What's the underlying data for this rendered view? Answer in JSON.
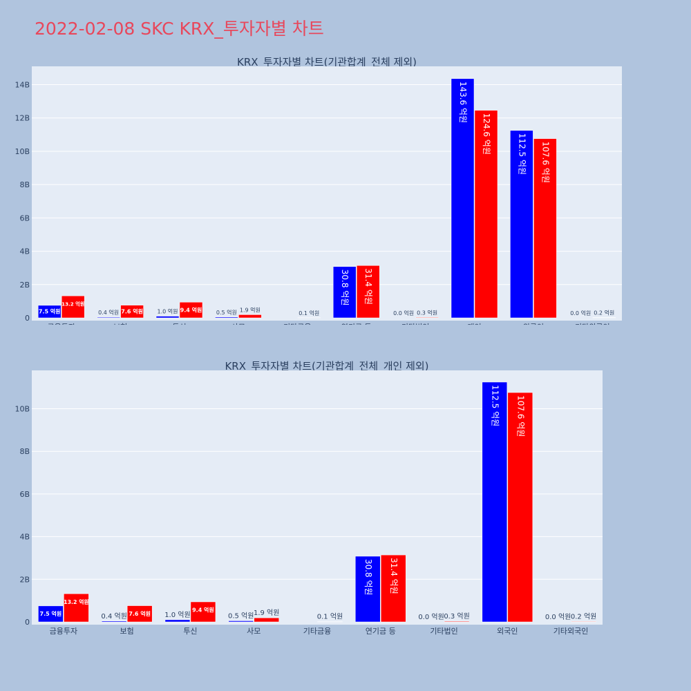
{
  "page": {
    "title": "2022-02-08 SKC KRX_투자자별 차트",
    "background": "#b0c4de",
    "title_color": "#e8475b"
  },
  "colors": {
    "series_a": "#0000ff",
    "series_b": "#ff0000",
    "plot_bg": "#e5ecf6",
    "grid": "#ffffff",
    "text": "#2a3f5f"
  },
  "chart_data": [
    {
      "type": "bar",
      "title": "KRX_투자자별 차트(기관합계_전체 제외)",
      "categories": [
        "금융투자",
        "보험",
        "투신",
        "사모",
        "기타금융",
        "연기금 등",
        "기타법인",
        "개인",
        "외국인",
        "기타외국인"
      ],
      "series": [
        {
          "color": "#0000ff",
          "values": [
            0.75,
            0.04,
            0.1,
            0.05,
            0.0,
            3.08,
            0.0,
            14.36,
            11.25,
            0.0
          ],
          "labels": [
            "7.5 억원",
            "0.4 억원",
            "1.0 억원",
            "0.5 억원",
            "",
            "30.8 억원",
            "0.0 억원",
            "143.6 억원",
            "112.5 억원",
            "0.0 억원"
          ]
        },
        {
          "color": "#ff0000",
          "values": [
            1.32,
            0.76,
            0.94,
            0.19,
            0.01,
            3.14,
            0.03,
            12.46,
            10.76,
            0.02
          ],
          "labels": [
            "13.2 억원",
            "7.6 억원",
            "9.4 억원",
            "1.9 억원",
            "0.1 억원",
            "31.4 억원",
            "0.3 억원",
            "124.6 억원",
            "107.6 억원",
            "0.2 억원"
          ]
        }
      ],
      "yticks": [
        "0",
        "2B",
        "4B",
        "6B",
        "8B",
        "10B",
        "12B",
        "14B"
      ],
      "ytick_values": [
        0,
        2,
        4,
        6,
        8,
        10,
        12,
        14
      ],
      "ylim": [
        0,
        15.1
      ],
      "grid": true
    },
    {
      "type": "bar",
      "title": "KRX_투자자별 차트(기관합계_전체_개인 제외)",
      "categories": [
        "금융투자",
        "보험",
        "투신",
        "사모",
        "기타금융",
        "연기금 등",
        "기타법인",
        "외국인",
        "기타외국인"
      ],
      "series": [
        {
          "color": "#0000ff",
          "values": [
            0.75,
            0.04,
            0.1,
            0.05,
            0.0,
            3.08,
            0.0,
            11.25,
            0.0
          ],
          "labels": [
            "7.5 억원",
            "0.4 억원",
            "1.0 억원",
            "0.5 억원",
            "",
            "30.8 억원",
            "0.0 억원",
            "112.5 억원",
            "0.0 억원"
          ]
        },
        {
          "color": "#ff0000",
          "values": [
            1.32,
            0.76,
            0.94,
            0.19,
            0.01,
            3.14,
            0.03,
            10.76,
            0.02
          ],
          "labels": [
            "13.2 억원",
            "7.6 억원",
            "9.4 억원",
            "1.9 억원",
            "0.1 억원",
            "31.4 억원",
            "0.3 억원",
            "107.6 억원",
            "0.2 억원"
          ]
        }
      ],
      "yticks": [
        "0",
        "2B",
        "4B",
        "6B",
        "8B",
        "10B"
      ],
      "ytick_values": [
        0,
        2,
        4,
        6,
        8,
        10
      ],
      "ylim": [
        0,
        11.8
      ],
      "grid": true
    }
  ]
}
